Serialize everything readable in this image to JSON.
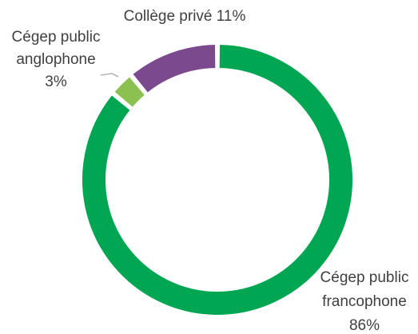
{
  "chart_data": {
    "type": "pie",
    "variant": "donut",
    "title": "",
    "slices": [
      {
        "name": "Cégep public francophone",
        "value": 86,
        "label_lines": [
          "Cégep public",
          "francophone",
          "86%"
        ],
        "color": "#00A651"
      },
      {
        "name": "Cégep public anglophone",
        "value": 3,
        "label_lines": [
          "Cégep public",
          "anglophone",
          "3%"
        ],
        "color": "#8CC152"
      },
      {
        "name": "Collège privé",
        "value": 11,
        "label_lines": [
          "Collège privé 11%"
        ],
        "color": "#7B4A8E"
      }
    ],
    "legend": "none"
  }
}
